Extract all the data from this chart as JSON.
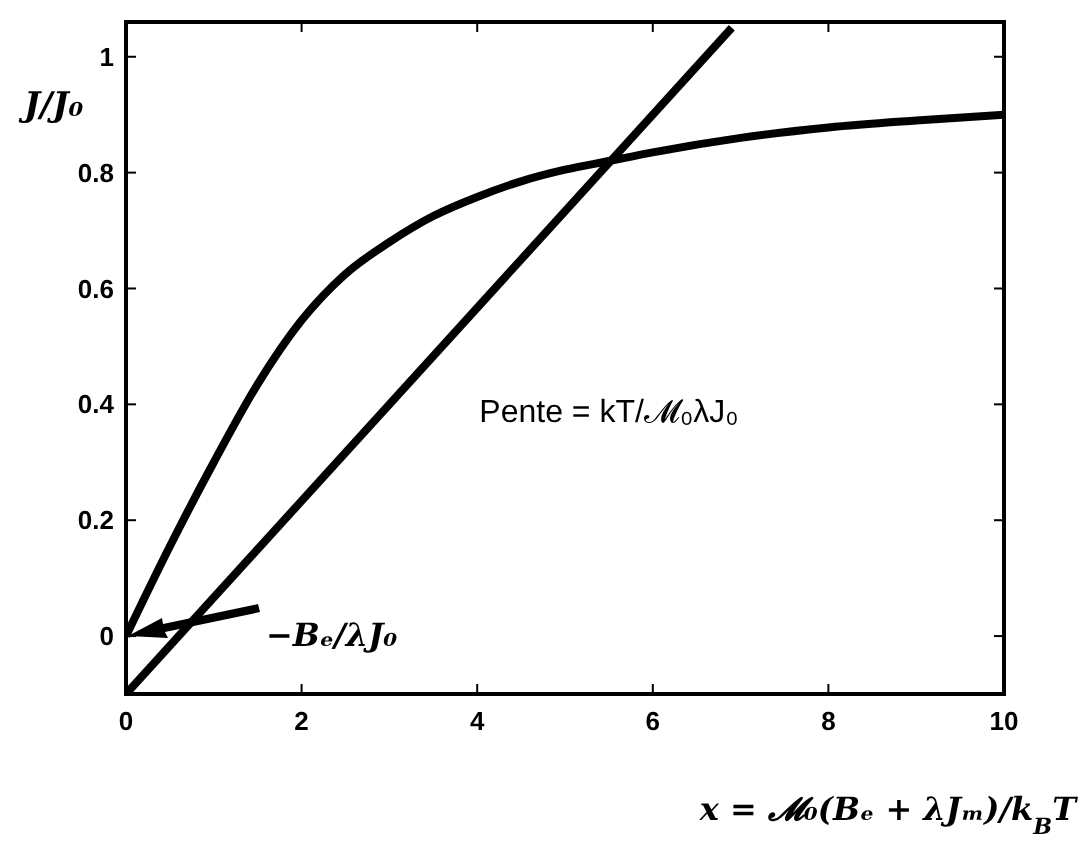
{
  "chart_data": {
    "type": "line",
    "xlabel": "x = 𝓜₀(Bₑ + λJₘ)/k$_{B}$T",
    "ylabel": "J/J₀",
    "xlim": [
      0,
      10
    ],
    "ylim": [
      -0.1,
      1.06
    ],
    "xticks": [
      0,
      2,
      4,
      6,
      8,
      10
    ],
    "yticks": [
      0,
      0.2,
      0.4,
      0.6,
      0.8,
      1
    ],
    "grid": false,
    "marker": "none",
    "line_style": "solid",
    "series": [
      {
        "color": "#000000",
        "x": [
          0,
          0.5,
          1,
          1.5,
          2,
          2.5,
          3,
          3.5,
          4,
          4.5,
          5,
          5.5,
          6,
          7,
          8,
          9,
          10
        ],
        "values": [
          0,
          0.155,
          0.3,
          0.435,
          0.545,
          0.625,
          0.68,
          0.725,
          0.758,
          0.785,
          0.805,
          0.82,
          0.835,
          0.86,
          0.878,
          0.89,
          0.9
        ]
      },
      {
        "color": "#000000",
        "x": [
          0,
          6.9
        ],
        "values": [
          -0.1,
          1.05
        ]
      }
    ],
    "annotations": [
      "Pente = kT/𝓜₀λJ₀",
      "−Bₑ/λJ₀"
    ]
  }
}
